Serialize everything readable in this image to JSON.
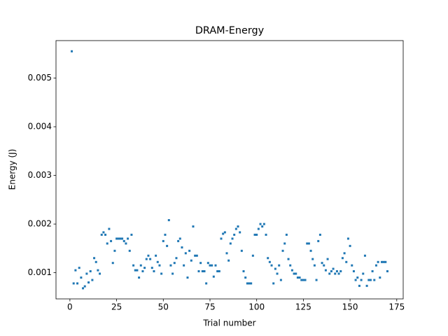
{
  "chart_data": {
    "type": "scatter",
    "title": "DRAM-Energy",
    "xlabel": "Trial number",
    "ylabel": "Energy (J)",
    "color": "#1f77b4",
    "x": [
      1,
      2,
      3,
      4,
      5,
      6,
      7,
      8,
      9,
      10,
      11,
      12,
      13,
      14,
      15,
      16,
      17,
      18,
      19,
      20,
      21,
      22,
      23,
      24,
      25,
      26,
      27,
      28,
      29,
      30,
      31,
      32,
      33,
      34,
      35,
      36,
      37,
      38,
      39,
      40,
      41,
      42,
      43,
      44,
      45,
      46,
      47,
      48,
      49,
      50,
      51,
      52,
      53,
      54,
      55,
      56,
      57,
      58,
      59,
      60,
      61,
      62,
      63,
      64,
      65,
      66,
      67,
      68,
      69,
      70,
      71,
      72,
      73,
      74,
      75,
      76,
      77,
      78,
      79,
      80,
      81,
      82,
      83,
      84,
      85,
      86,
      87,
      88,
      89,
      90,
      91,
      92,
      93,
      94,
      95,
      96,
      97,
      98,
      99,
      100,
      101,
      102,
      103,
      104,
      105,
      106,
      107,
      108,
      109,
      110,
      111,
      112,
      113,
      114,
      115,
      116,
      117,
      118,
      119,
      120,
      121,
      122,
      123,
      124,
      125,
      126,
      127,
      128,
      129,
      130,
      131,
      132,
      133,
      134,
      135,
      136,
      137,
      138,
      139,
      140,
      141,
      142,
      143,
      144,
      145,
      146,
      147,
      148,
      149,
      150,
      151,
      152,
      153,
      154,
      155,
      156,
      157,
      158,
      159,
      160,
      161,
      162,
      163,
      164,
      165,
      166,
      167,
      168,
      169,
      170
    ],
    "values": [
      0.00555,
      0.00078,
      0.00105,
      0.00078,
      0.0011,
      0.0009,
      0.00068,
      0.00072,
      0.00098,
      0.0008,
      0.00103,
      0.00085,
      0.0013,
      0.00122,
      0.00105,
      0.00098,
      0.00178,
      0.00183,
      0.00178,
      0.0016,
      0.0019,
      0.00165,
      0.0012,
      0.00145,
      0.0017,
      0.0017,
      0.0017,
      0.0017,
      0.00165,
      0.0016,
      0.0017,
      0.00145,
      0.00178,
      0.00115,
      0.00105,
      0.00105,
      0.0009,
      0.00115,
      0.00103,
      0.0011,
      0.00128,
      0.00135,
      0.00128,
      0.0011,
      0.00103,
      0.00135,
      0.00122,
      0.00115,
      0.00098,
      0.00165,
      0.00178,
      0.00155,
      0.00208,
      0.00115,
      0.00098,
      0.0012,
      0.0013,
      0.00165,
      0.0017,
      0.00152,
      0.00115,
      0.0014,
      0.0009,
      0.00145,
      0.00125,
      0.00195,
      0.00135,
      0.00135,
      0.00103,
      0.0012,
      0.00103,
      0.00103,
      0.00078,
      0.0012,
      0.00115,
      0.00115,
      0.00092,
      0.00115,
      0.00103,
      0.00103,
      0.0017,
      0.0018,
      0.00183,
      0.0014,
      0.00125,
      0.0016,
      0.0017,
      0.00178,
      0.0019,
      0.00195,
      0.00183,
      0.00145,
      0.00103,
      0.0009,
      0.00078,
      0.00078,
      0.00078,
      0.00135,
      0.00178,
      0.00178,
      0.0019,
      0.002,
      0.00195,
      0.002,
      0.00178,
      0.0013,
      0.00122,
      0.00115,
      0.00078,
      0.00108,
      0.00098,
      0.00115,
      0.00085,
      0.00145,
      0.0016,
      0.00178,
      0.00128,
      0.00115,
      0.00105,
      0.00098,
      0.00098,
      0.0009,
      0.0009,
      0.00085,
      0.00085,
      0.00085,
      0.0016,
      0.0016,
      0.00145,
      0.00128,
      0.00115,
      0.00085,
      0.00165,
      0.00178,
      0.0012,
      0.00115,
      0.00105,
      0.00128,
      0.00098,
      0.00103,
      0.00108,
      0.00098,
      0.00103,
      0.00098,
      0.00103,
      0.0013,
      0.0014,
      0.00122,
      0.0017,
      0.00155,
      0.00115,
      0.00103,
      0.00085,
      0.0009,
      0.00073,
      0.00085,
      0.00098,
      0.00135,
      0.00073,
      0.00085,
      0.00085,
      0.00103,
      0.00085,
      0.00115,
      0.00122,
      0.0009,
      0.00122,
      0.00122,
      0.00122,
      0.00103
    ],
    "xlim": [
      -7.45,
      178.45
    ],
    "xticks": [
      0,
      25,
      50,
      75,
      100,
      125,
      150,
      175
    ],
    "ylim": [
      0.000462,
      0.00577
    ],
    "yticks": [
      0.001,
      0.002,
      0.003,
      0.004,
      0.005
    ]
  }
}
